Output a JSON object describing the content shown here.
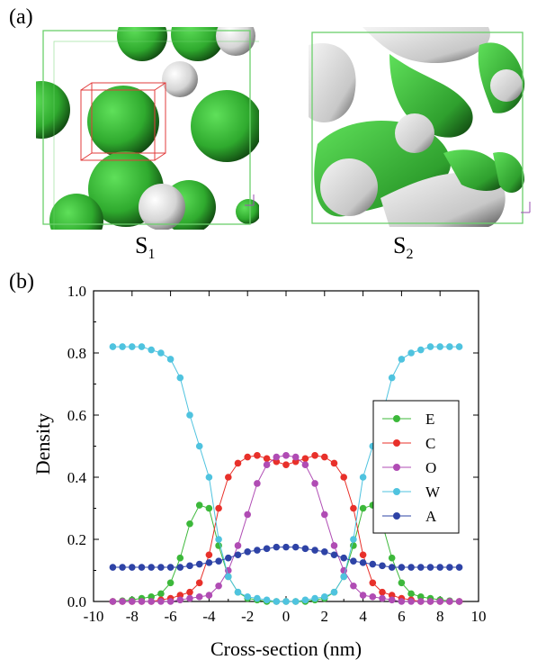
{
  "panel_labels": {
    "a": "(a)",
    "b": "(b)"
  },
  "snapshots": [
    {
      "label": "S",
      "subscript": "1"
    },
    {
      "label": "S",
      "subscript": "2"
    }
  ],
  "colors": {
    "green": "#3cb83a",
    "silver": "#d8d8d8",
    "box": "#6bd06b",
    "roi": "#e23b3b"
  },
  "chart_data": {
    "type": "line",
    "xlabel": "Cross-section (nm)",
    "ylabel": "Density",
    "xlim": [
      -10,
      10
    ],
    "ylim": [
      0.0,
      1.0
    ],
    "xticks": [
      -10,
      -8,
      -6,
      -4,
      -2,
      0,
      2,
      4,
      6,
      8,
      10
    ],
    "yticks": [
      0.0,
      0.2,
      0.4,
      0.6,
      0.8,
      1.0
    ],
    "legend_position": "right",
    "x": [
      -9,
      -8.5,
      -8,
      -7.5,
      -7,
      -6.5,
      -6,
      -5.5,
      -5,
      -4.5,
      -4,
      -3.5,
      -3,
      -2.5,
      -2,
      -1.5,
      -1,
      -0.5,
      0,
      0.5,
      1,
      1.5,
      2,
      2.5,
      3,
      3.5,
      4,
      4.5,
      5,
      5.5,
      6,
      6.5,
      7,
      7.5,
      8,
      8.5,
      9
    ],
    "series": [
      {
        "name": "E",
        "color": "#3cb83a",
        "values": [
          0,
          0.002,
          0.005,
          0.01,
          0.015,
          0.025,
          0.06,
          0.14,
          0.25,
          0.31,
          0.3,
          0.18,
          0.08,
          0.03,
          0.01,
          0.005,
          0,
          0,
          0,
          0,
          0,
          0.005,
          0.01,
          0.03,
          0.08,
          0.18,
          0.3,
          0.31,
          0.25,
          0.14,
          0.06,
          0.025,
          0.015,
          0.01,
          0.005,
          0.002,
          0
        ]
      },
      {
        "name": "C",
        "color": "#e8302a",
        "values": [
          0,
          0,
          0,
          0,
          0,
          0.005,
          0.01,
          0.02,
          0.03,
          0.06,
          0.15,
          0.3,
          0.4,
          0.445,
          0.465,
          0.47,
          0.46,
          0.45,
          0.44,
          0.45,
          0.46,
          0.47,
          0.465,
          0.445,
          0.4,
          0.3,
          0.15,
          0.06,
          0.03,
          0.02,
          0.01,
          0.005,
          0,
          0,
          0,
          0,
          0
        ]
      },
      {
        "name": "O",
        "color": "#b04cb4",
        "values": [
          0,
          0,
          0,
          0,
          0,
          0,
          0,
          0.005,
          0.01,
          0.015,
          0.02,
          0.05,
          0.1,
          0.18,
          0.28,
          0.38,
          0.44,
          0.465,
          0.47,
          0.465,
          0.44,
          0.38,
          0.28,
          0.18,
          0.1,
          0.05,
          0.02,
          0.015,
          0.01,
          0.005,
          0,
          0,
          0,
          0,
          0,
          0,
          0
        ]
      },
      {
        "name": "W",
        "color": "#4fc3df",
        "values": [
          0.82,
          0.82,
          0.82,
          0.82,
          0.81,
          0.8,
          0.78,
          0.72,
          0.6,
          0.5,
          0.4,
          0.2,
          0.08,
          0.03,
          0.015,
          0.01,
          0.005,
          0,
          0,
          0,
          0.005,
          0.01,
          0.015,
          0.03,
          0.08,
          0.2,
          0.4,
          0.5,
          0.6,
          0.72,
          0.78,
          0.8,
          0.81,
          0.82,
          0.82,
          0.82,
          0.82
        ]
      },
      {
        "name": "A",
        "color": "#2e43a6",
        "values": [
          0.11,
          0.11,
          0.11,
          0.11,
          0.11,
          0.11,
          0.11,
          0.11,
          0.115,
          0.12,
          0.125,
          0.13,
          0.14,
          0.15,
          0.16,
          0.165,
          0.17,
          0.175,
          0.175,
          0.175,
          0.17,
          0.165,
          0.16,
          0.15,
          0.14,
          0.13,
          0.125,
          0.12,
          0.115,
          0.11,
          0.11,
          0.11,
          0.11,
          0.11,
          0.11,
          0.11,
          0.11
        ]
      }
    ]
  }
}
